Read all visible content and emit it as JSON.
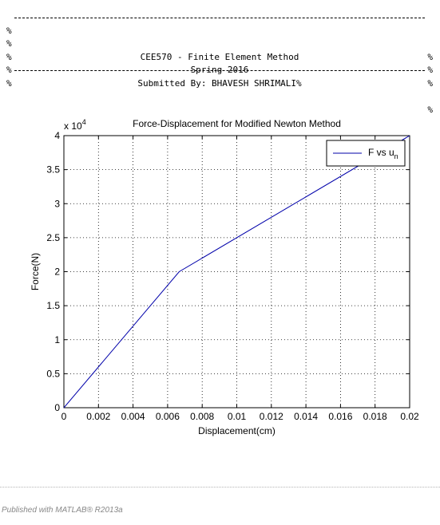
{
  "header_block": {
    "lines": [
      {
        "kind": "rule",
        "left": "%",
        "right": "%"
      },
      {
        "kind": "text",
        "left": "%",
        "text": "CEE570 - Finite Element Method",
        "right": "%"
      },
      {
        "kind": "text",
        "left": "%",
        "text": "Spring 2016",
        "right": "%"
      },
      {
        "kind": "text",
        "left": "%",
        "text": "Submitted By: BHAVESH SHRIMALI%",
        "right": ""
      },
      {
        "kind": "rule",
        "left": "%",
        "right": "%"
      }
    ]
  },
  "chart_data": {
    "type": "line",
    "title": "Force-Displacement for Modified Newton Method",
    "xlabel": "Displacement(cm)",
    "ylabel": "Force(N)",
    "y_exponent_label": "x 10",
    "y_exponent": "4",
    "xlim": [
      0,
      0.02
    ],
    "ylim": [
      0,
      40000
    ],
    "x_ticks": [
      {
        "value": 0,
        "label": "0"
      },
      {
        "value": 0.002,
        "label": "0.002"
      },
      {
        "value": 0.004,
        "label": "0.004"
      },
      {
        "value": 0.006,
        "label": "0.006"
      },
      {
        "value": 0.008,
        "label": "0.008"
      },
      {
        "value": 0.01,
        "label": "0.01"
      },
      {
        "value": 0.012,
        "label": "0.012"
      },
      {
        "value": 0.014,
        "label": "0.014"
      },
      {
        "value": 0.016,
        "label": "0.016"
      },
      {
        "value": 0.018,
        "label": "0.018"
      },
      {
        "value": 0.02,
        "label": "0.02"
      }
    ],
    "y_ticks": [
      {
        "value": 0,
        "label": "0"
      },
      {
        "value": 5000,
        "label": "0.5"
      },
      {
        "value": 10000,
        "label": "1"
      },
      {
        "value": 15000,
        "label": "1.5"
      },
      {
        "value": 20000,
        "label": "2"
      },
      {
        "value": 25000,
        "label": "2.5"
      },
      {
        "value": 30000,
        "label": "3"
      },
      {
        "value": 35000,
        "label": "3.5"
      },
      {
        "value": 40000,
        "label": "4"
      }
    ],
    "grid": true,
    "legend": {
      "placement": "top-right",
      "text": "F vs u",
      "subscript": "n"
    },
    "series": [
      {
        "color": "#0000aa",
        "x": [
          0,
          0.00667,
          0.02
        ],
        "y": [
          0,
          20000,
          40000
        ]
      }
    ]
  },
  "footer": {
    "text": "Published with MATLAB® R2013a"
  }
}
